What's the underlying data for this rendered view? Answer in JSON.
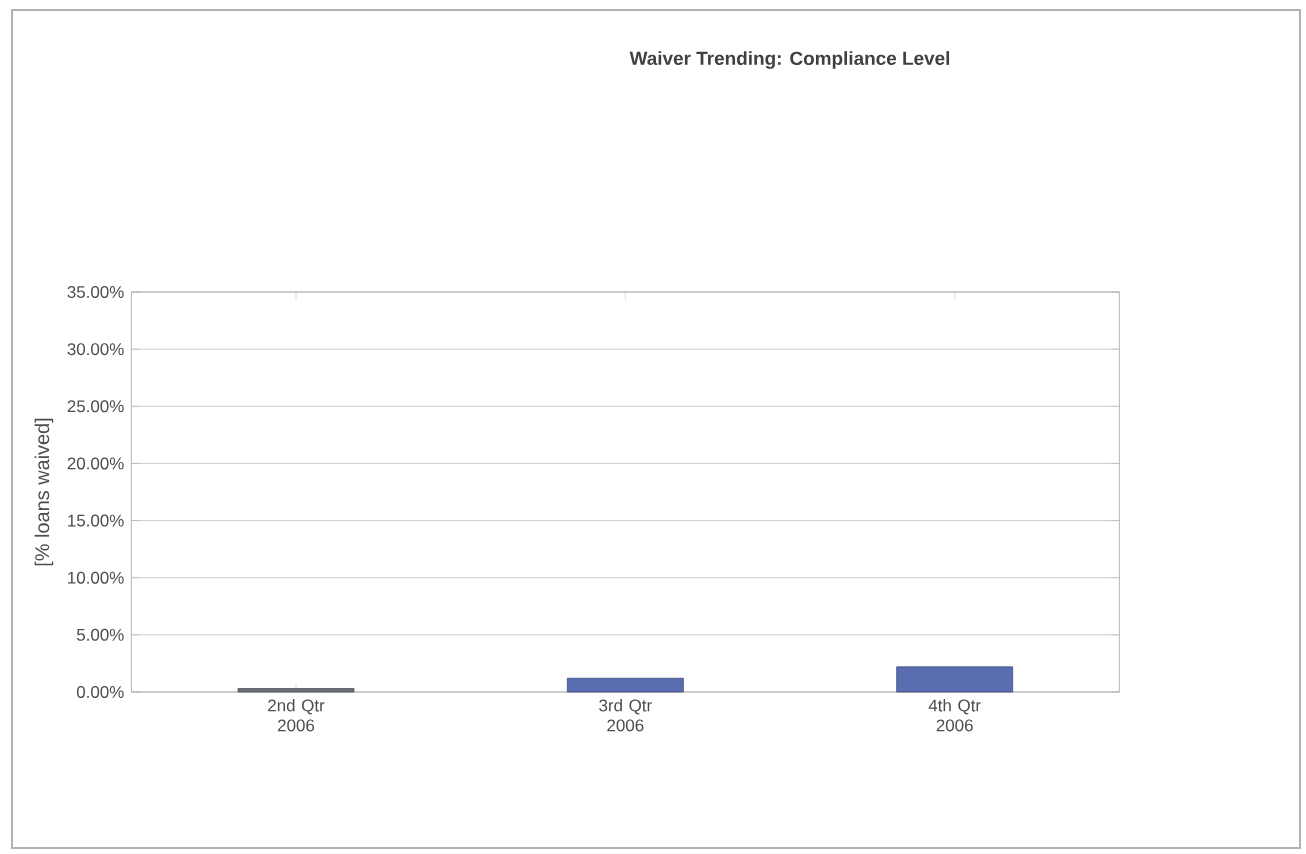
{
  "chart_data": {
    "type": "bar",
    "title": "Waiver Trending: Compliance Level",
    "ylabel": "[% loans waived]",
    "categories": [
      "2nd Qtr 2006",
      "3rd Qtr 2006",
      "4th Qtr 2006"
    ],
    "values": [
      0.3,
      1.2,
      2.2
    ],
    "colors": [
      "#6b6f78",
      "#5a6db0",
      "#5a6db0"
    ],
    "ylim": [
      0,
      35
    ],
    "yticks": [
      {
        "value": 0,
        "label": "0.00%"
      },
      {
        "value": 5,
        "label": "5.00%"
      },
      {
        "value": 10,
        "label": "10.00%"
      },
      {
        "value": 15,
        "label": "15.00%"
      },
      {
        "value": 20,
        "label": "20.00%"
      },
      {
        "value": 25,
        "label": "25.00%"
      },
      {
        "value": 30,
        "label": "30.00%"
      },
      {
        "value": 35,
        "label": "35.00%"
      }
    ],
    "grid": "y"
  }
}
